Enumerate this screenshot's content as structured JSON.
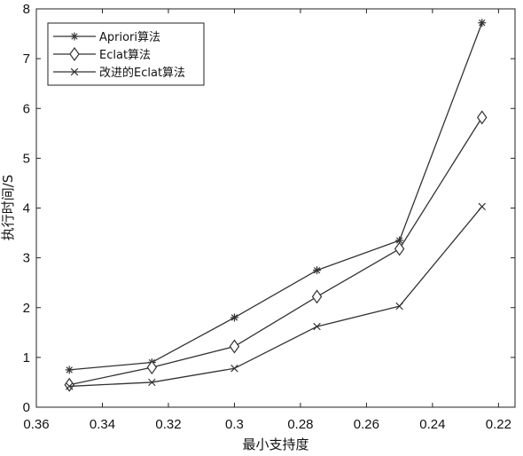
{
  "chart_data": {
    "type": "line",
    "title": "",
    "xlabel": "最小支持度",
    "ylabel": "执行时间/S",
    "x": [
      0.35,
      0.325,
      0.3,
      0.275,
      0.25,
      0.225
    ],
    "xlim": [
      0.36,
      0.215
    ],
    "ylim": [
      0,
      8
    ],
    "x_reversed": true,
    "x_ticks": [
      "0.36",
      "0.34",
      "0.32",
      "0.3",
      "0.28",
      "0.26",
      "0.24",
      "0.22"
    ],
    "x_tick_values": [
      0.36,
      0.34,
      0.32,
      0.3,
      0.28,
      0.26,
      0.24,
      0.22
    ],
    "y_ticks": [
      "0",
      "1",
      "2",
      "3",
      "4",
      "5",
      "6",
      "7",
      "8"
    ],
    "y_tick_values": [
      0,
      1,
      2,
      3,
      4,
      5,
      6,
      7,
      8
    ],
    "grid": false,
    "legend_position": "top-left",
    "line_color": "#333333",
    "series": [
      {
        "name": "Apriori算法",
        "marker": "asterisk",
        "values": [
          0.75,
          0.9,
          1.8,
          2.75,
          3.35,
          7.72
        ]
      },
      {
        "name": "Eclat算法",
        "marker": "diamond",
        "values": [
          0.45,
          0.8,
          1.22,
          2.22,
          3.18,
          5.82
        ]
      },
      {
        "name": "改进的Eclat算法",
        "marker": "x",
        "values": [
          0.42,
          0.5,
          0.78,
          1.62,
          2.03,
          4.03
        ]
      }
    ]
  }
}
